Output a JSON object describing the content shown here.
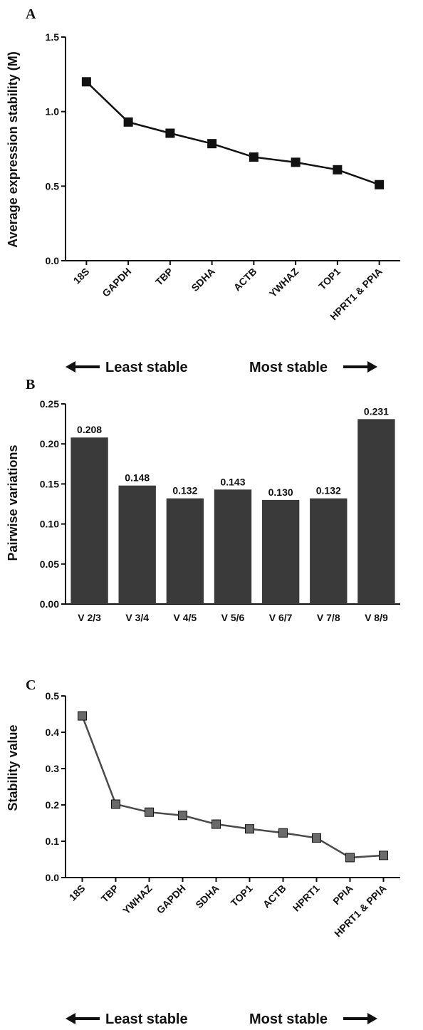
{
  "chart_data": [
    {
      "panel": "A",
      "type": "line",
      "title": "",
      "xlabel": "",
      "ylabel": "Average expression stability (M)",
      "ylim": [
        0,
        1.5
      ],
      "yticks": [
        "0.0",
        "0.5",
        "1.0",
        "1.5"
      ],
      "categories": [
        "18S",
        "GAPDH",
        "TBP",
        "SDHA",
        "ACTB",
        "YWHAZ",
        "TOP1",
        "HPRT1 & PPIA"
      ],
      "series": [
        {
          "values": [
            1.2,
            0.93,
            0.855,
            0.785,
            0.695,
            0.66,
            0.61,
            0.51
          ]
        }
      ],
      "color": "#111111",
      "annotations": {
        "left": "Least stable",
        "right": "Most stable"
      }
    },
    {
      "panel": "B",
      "type": "bar",
      "title": "",
      "xlabel": "",
      "ylabel": "Pairwise variations",
      "ylim": [
        0,
        0.25
      ],
      "yticks": [
        "0.00",
        "0.05",
        "0.10",
        "0.15",
        "0.20",
        "0.25"
      ],
      "categories": [
        "V 2/3",
        "V 3/4",
        "V 4/5",
        "V 5/6",
        "V 6/7",
        "V 7/8",
        "V 8/9"
      ],
      "values": [
        0.208,
        0.148,
        0.132,
        0.143,
        0.13,
        0.132,
        0.231
      ],
      "value_labels": [
        "0.208",
        "0.148",
        "0.132",
        "0.143",
        "0.130",
        "0.132",
        "0.231"
      ],
      "color": "#3a3a3a"
    },
    {
      "panel": "C",
      "type": "line",
      "title": "",
      "xlabel": "",
      "ylabel": "Stability value",
      "ylim": [
        0,
        0.5
      ],
      "yticks": [
        "0.0",
        "0.1",
        "0.2",
        "0.3",
        "0.4",
        "0.5"
      ],
      "categories": [
        "18S",
        "TBP",
        "YWHAZ",
        "GAPDH",
        "SDHA",
        "TOP1",
        "ACTB",
        "HPRT1",
        "PPIA",
        "HPRT1 & PPIA"
      ],
      "series": [
        {
          "values": [
            0.445,
            0.202,
            0.18,
            0.171,
            0.147,
            0.134,
            0.123,
            0.109,
            0.055,
            0.061
          ]
        }
      ],
      "color": "#4a4a4a",
      "annotations": {
        "left": "Least stable",
        "right": "Most stable"
      }
    }
  ]
}
